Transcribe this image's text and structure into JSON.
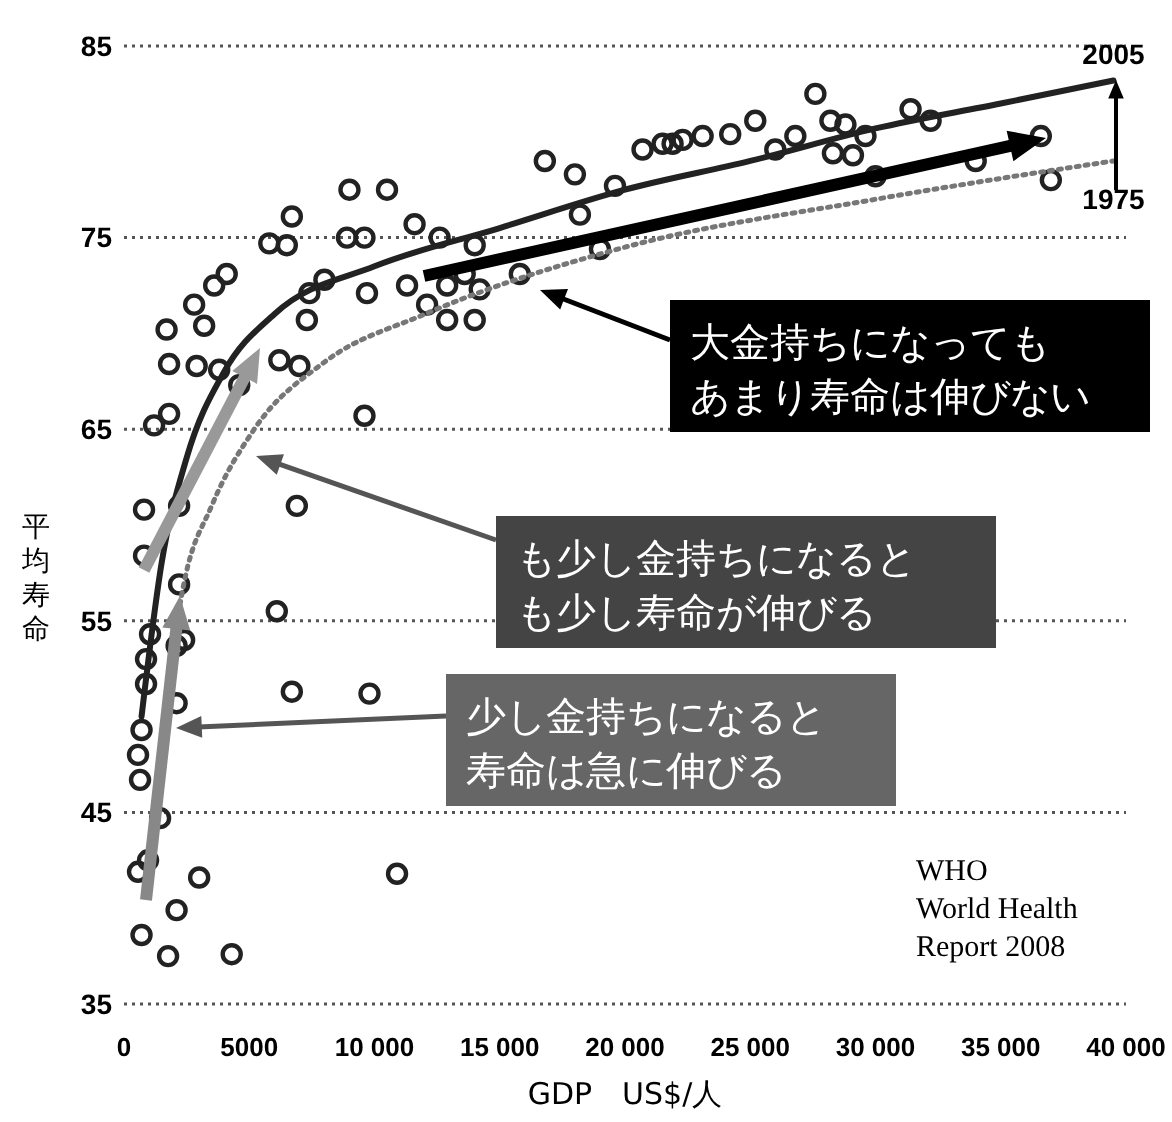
{
  "chart_data": {
    "type": "scatter",
    "xlabel": "GDP　US$/人",
    "ylabel": "平均寿命",
    "xlim": [
      0,
      40000
    ],
    "ylim": [
      35,
      85
    ],
    "xticks": [
      0,
      5000,
      {
        "value": 10000,
        "label": "10 000"
      },
      {
        "value": 15000,
        "label": "15 000"
      },
      {
        "value": 20000,
        "label": "20 000"
      },
      {
        "value": 25000,
        "label": "25 000"
      },
      {
        "value": 30000,
        "label": "30 000"
      },
      {
        "value": 35000,
        "label": "35 000"
      },
      {
        "value": 40000,
        "label": "40 000"
      }
    ],
    "yticks": [
      35,
      45,
      55,
      65,
      75,
      85
    ],
    "grid": "y",
    "legend": false,
    "series": [
      {
        "color": "#222222",
        "marker": "circle",
        "x": [
          700,
          1760,
          4300,
          2100,
          3000,
          560,
          10900,
          960,
          1440,
          640,
          560,
          2100,
          6700,
          9800,
          700,
          880,
          880,
          1040,
          2400,
          6100,
          2100,
          800,
          2200,
          6900,
          800,
          2200,
          1200,
          1800,
          1800,
          1700,
          2800,
          3600,
          4100,
          3200,
          2900,
          3800,
          4600,
          5800,
          6500,
          6700,
          7400,
          8000,
          7300,
          7000,
          6200,
          9000,
          10500,
          8900,
          9600,
          9600,
          9700,
          11300,
          11600,
          12600,
          12100,
          12900,
          12900,
          13600,
          14000,
          14200,
          14000,
          15800,
          16800,
          18000,
          19000,
          19600,
          20700,
          21900,
          18200,
          21500,
          22300,
          23100,
          24200,
          25200,
          26000,
          26800,
          27600,
          28200,
          28800,
          28300,
          29100,
          29600,
          30000,
          31400,
          32200,
          34000,
          36600,
          37000
        ],
        "values": [
          38.6,
          37.5,
          37.6,
          39.9,
          41.6,
          41.9,
          41.8,
          42.5,
          44.7,
          46.7,
          48,
          50.7,
          51.3,
          51.2,
          49.3,
          51.7,
          53,
          54.3,
          54,
          55.5,
          53.7,
          58.4,
          56.9,
          61,
          60.8,
          61,
          65.2,
          65.8,
          68.4,
          70.2,
          71.5,
          72.5,
          73.1,
          70.4,
          68.3,
          68.1,
          67.3,
          74.7,
          74.6,
          76.1,
          72.1,
          72.8,
          70.7,
          68.3,
          68.6,
          77.5,
          77.5,
          75,
          75,
          65.7,
          72.1,
          72.5,
          75.7,
          75,
          71.5,
          70.7,
          72.5,
          73.1,
          74.6,
          72.3,
          70.7,
          73.1,
          79,
          78.3,
          74.4,
          77.7,
          79.6,
          79.9,
          76.2,
          79.9,
          80.1,
          80.3,
          80.4,
          81.1,
          79.6,
          80.3,
          82.5,
          81.1,
          80.9,
          79.4,
          79.3,
          80.3,
          78.2,
          81.7,
          81.1,
          79,
          80.3,
          78
        ]
      },
      {
        "type": "line",
        "name": "2005",
        "color": "#222222",
        "line_style": "solid",
        "x": [
          700,
          1500,
          2500,
          4000,
          6000,
          10000,
          15000,
          20000,
          25000,
          30000,
          35000,
          39500
        ],
        "values": [
          50,
          58,
          63.5,
          68,
          71,
          73.5,
          75.5,
          77.5,
          79,
          80.7,
          82,
          83.2
        ]
      },
      {
        "type": "line",
        "name": "1975",
        "color": "#777777",
        "line_style": "dotted",
        "x": [
          2000,
          2400,
          3500,
          5200,
          8000,
          12000,
          20000,
          30000,
          37000,
          39500
        ],
        "values": [
          54,
          57,
          61,
          65,
          68.5,
          71,
          74.5,
          77,
          78.5,
          79
        ]
      }
    ],
    "annotations": [
      "大金持ちになってもあまり寿命は伸びない",
      "も少し金持ちになるとも少し寿命が伸びる",
      "少し金持ちになると寿命は急に伸びる",
      "WHO\nWorld Health\nReport 2008"
    ]
  }
}
